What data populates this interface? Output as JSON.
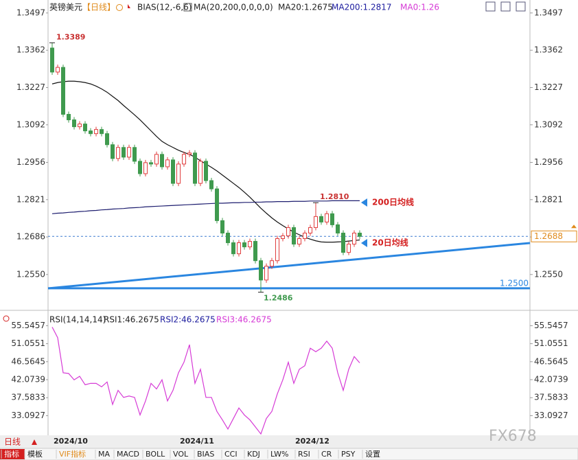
{
  "header": {
    "symbol": "英镑美元",
    "period": "【日线】",
    "indicator": "BIAS(12,-6,6)",
    "ma_params": "MA(20,200,0,0,0,0)",
    "ma20": "MA20:1.2675",
    "ma200": "MA200:1.2817",
    "ma0": "MA0:1.26"
  },
  "chart_data": [
    {
      "type": "candlestick",
      "categories": [
        "2024/10",
        null,
        null,
        null,
        null,
        null,
        null,
        null,
        null,
        null,
        null,
        null,
        null,
        null,
        null,
        null,
        null,
        null,
        null,
        null,
        null,
        null,
        null,
        "2024/11",
        null,
        null,
        null,
        null,
        null,
        null,
        null,
        null,
        null,
        null,
        null,
        null,
        null,
        null,
        null,
        null,
        null,
        null,
        null,
        null,
        "2024/12",
        null,
        null,
        null,
        null,
        null,
        null,
        null,
        null,
        null,
        null,
        null,
        null
      ],
      "open": [
        1.337,
        1.3283,
        1.33,
        1.313,
        1.311,
        1.3085,
        1.3095,
        1.307,
        1.306,
        1.3075,
        1.306,
        1.302,
        1.297,
        1.301,
        1.2975,
        1.301,
        1.296,
        1.2915,
        1.2955,
        1.295,
        1.2985,
        1.294,
        1.2965,
        1.288,
        1.295,
        1.2985,
        1.299,
        1.288,
        1.296,
        1.289,
        1.286,
        1.2745,
        1.27,
        1.2665,
        1.2625,
        1.2665,
        1.265,
        1.267,
        1.26,
        1.253,
        1.258,
        1.26,
        1.268,
        1.269,
        1.272,
        1.266,
        1.268,
        1.27,
        1.272,
        1.276,
        1.274,
        1.277,
        1.273,
        1.27,
        1.263,
        1.266,
        1.27
      ],
      "high": [
        1.3389,
        1.331,
        1.331,
        1.314,
        1.312,
        1.3105,
        1.3105,
        1.308,
        1.3085,
        1.3085,
        1.307,
        1.303,
        1.302,
        1.302,
        1.302,
        1.302,
        1.297,
        1.2965,
        1.2965,
        1.2995,
        1.2995,
        1.2975,
        1.2975,
        1.296,
        1.2995,
        1.3,
        1.3,
        1.297,
        1.297,
        1.29,
        1.287,
        1.2755,
        1.271,
        1.2675,
        1.2675,
        1.2675,
        1.268,
        1.268,
        1.261,
        1.259,
        1.261,
        1.269,
        1.27,
        1.273,
        1.273,
        1.269,
        1.271,
        1.273,
        1.281,
        1.277,
        1.278,
        1.278,
        1.274,
        1.271,
        1.267,
        1.271,
        1.271
      ],
      "low": [
        1.3273,
        1.3273,
        1.312,
        1.31,
        1.3075,
        1.3075,
        1.306,
        1.305,
        1.305,
        1.305,
        1.301,
        1.296,
        1.296,
        1.2965,
        1.2965,
        1.295,
        1.2905,
        1.2905,
        1.294,
        1.294,
        1.293,
        1.293,
        1.287,
        1.287,
        1.294,
        1.2975,
        1.287,
        1.287,
        1.288,
        1.285,
        1.2735,
        1.269,
        1.2655,
        1.2615,
        1.2615,
        1.264,
        1.264,
        1.259,
        1.2486,
        1.252,
        1.257,
        1.259,
        1.267,
        1.268,
        1.265,
        1.265,
        1.267,
        1.269,
        1.271,
        1.273,
        1.273,
        1.272,
        1.269,
        1.262,
        1.262,
        1.265,
        1.2678
      ],
      "close": [
        1.3283,
        1.33,
        1.313,
        1.311,
        1.3085,
        1.3095,
        1.307,
        1.306,
        1.3075,
        1.306,
        1.302,
        1.297,
        1.301,
        1.2975,
        1.301,
        1.296,
        1.2915,
        1.2955,
        1.295,
        1.2985,
        1.294,
        1.2965,
        1.288,
        1.295,
        1.2985,
        1.299,
        1.288,
        1.296,
        1.289,
        1.286,
        1.2745,
        1.27,
        1.2665,
        1.2625,
        1.2665,
        1.265,
        1.267,
        1.26,
        1.253,
        1.258,
        1.26,
        1.268,
        1.269,
        1.272,
        1.266,
        1.268,
        1.27,
        1.272,
        1.276,
        1.274,
        1.277,
        1.273,
        1.27,
        1.263,
        1.266,
        1.27,
        1.2688
      ],
      "high_labels": [
        "1.3389",
        null,
        null,
        null,
        null,
        null,
        null,
        null,
        null,
        null,
        null,
        null,
        null,
        null,
        null,
        null,
        null,
        null,
        null,
        null,
        null,
        null,
        null,
        null,
        null,
        null,
        null,
        null,
        null,
        null,
        null,
        null,
        null,
        null,
        null,
        null,
        null,
        null,
        null,
        null,
        null,
        null,
        null,
        null,
        null,
        null,
        null,
        null,
        "1.2810",
        null,
        null,
        null,
        null,
        null,
        null,
        null,
        null
      ],
      "low_labels": [
        null,
        null,
        null,
        null,
        null,
        null,
        null,
        null,
        null,
        null,
        null,
        null,
        null,
        null,
        null,
        null,
        null,
        null,
        null,
        null,
        null,
        null,
        null,
        null,
        null,
        null,
        null,
        null,
        null,
        null,
        null,
        null,
        null,
        null,
        null,
        null,
        null,
        null,
        "1.2486",
        null,
        null,
        null,
        null,
        null,
        null,
        null,
        null,
        null,
        null,
        null,
        null,
        null,
        null,
        null,
        null,
        null,
        null
      ],
      "up_color": "#e03c3c",
      "down_color": "#3f9a4e",
      "series": [
        {
          "name": "MA20",
          "color": "#111111",
          "values": [
            1.324,
            1.3245,
            1.3248,
            1.325,
            1.325,
            1.3248,
            1.3245,
            1.324,
            1.3232,
            1.3222,
            1.321,
            1.3195,
            1.318,
            1.3162,
            1.3145,
            1.3128,
            1.311,
            1.309,
            1.307,
            1.305,
            1.3032,
            1.302,
            1.301,
            1.3,
            1.2992,
            1.2985,
            1.2975,
            1.2962,
            1.295,
            1.2938,
            1.2925,
            1.291,
            1.2895,
            1.288,
            1.2865,
            1.2848,
            1.283,
            1.281,
            1.279,
            1.2772,
            1.2755,
            1.274,
            1.2727,
            1.2715,
            1.2703,
            1.2694,
            1.2685,
            1.2678,
            1.2672,
            1.2668,
            1.2667,
            1.2667,
            1.2668,
            1.2669,
            1.2671,
            1.2673,
            1.2675
          ]
        },
        {
          "name": "MA200",
          "color": "#1c1c6e",
          "values": [
            1.277,
            1.2772,
            1.2773,
            1.2775,
            1.2776,
            1.2778,
            1.2779,
            1.2781,
            1.2782,
            1.2784,
            1.2785,
            1.2787,
            1.2788,
            1.2789,
            1.2791,
            1.2792,
            1.2793,
            1.2795,
            1.2796,
            1.2797,
            1.2798,
            1.2799,
            1.28,
            1.2801,
            1.2802,
            1.2803,
            1.2804,
            1.2805,
            1.2806,
            1.2807,
            1.2808,
            1.2808,
            1.2809,
            1.281,
            1.281,
            1.2811,
            1.2811,
            1.2812,
            1.2812,
            1.2813,
            1.2813,
            1.2814,
            1.2814,
            1.2814,
            1.2815,
            1.2815,
            1.2815,
            1.2816,
            1.2816,
            1.2816,
            1.2816,
            1.2817,
            1.2817,
            1.2817,
            1.2817,
            1.2817,
            1.2817
          ]
        }
      ],
      "annotations": [
        "200日均线",
        "20日均线"
      ],
      "annotation_color": "#d42020",
      "trendline": {
        "start": 1.25,
        "end": 1.2664,
        "color": "#2a86e0"
      },
      "hline": {
        "value": 1.25,
        "label": "1.2500",
        "color": "#2a86e0"
      },
      "last_price": 1.2688,
      "ylim": [
        1.247,
        1.3524
      ],
      "yticks": [
        1.3497,
        1.3362,
        1.3227,
        1.3092,
        1.2956,
        1.2821,
        1.2686,
        {
          "value": 1.255,
          "label": "1.2550"
        }
      ]
    },
    {
      "type": "line",
      "title": "RSI(14,14,14)",
      "legend": [
        "RSI1:46.2675",
        "RSI2:46.2675",
        "RSI3:46.2675"
      ],
      "series": [
        {
          "name": "RSI1",
          "color": "#d63ad6",
          "values": [
            55.2,
            52.56,
            43.79,
            43.62,
            42.04,
            42.92,
            40.81,
            41.16,
            41.16,
            40.29,
            41.51,
            35.9,
            39.41,
            37.65,
            38.0,
            37.65,
            33.27,
            36.78,
            41.16,
            39.76,
            42.04,
            36.78,
            39.41,
            43.79,
            46.43,
            50.81,
            41.16,
            44.67,
            37.65,
            37.65,
            34.15,
            32.04,
            29.76,
            32.39,
            35.02,
            33.27,
            32.04,
            30.29,
            28.53,
            32.39,
            34.15,
            38.53,
            42.04,
            46.43,
            41.16,
            44.67,
            45.55,
            49.93,
            49.06,
            49.93,
            51.69,
            49.93,
            43.79,
            39.41,
            44.67,
            47.83,
            46.27
          ]
        }
      ],
      "ylim": [
        28.2,
        58.35
      ],
      "yticks": [
        55.5457,
        51.0551,
        46.5645,
        42.0739,
        37.5833,
        33.0927
      ]
    }
  ],
  "footer": {
    "period": "日线",
    "tabs": [
      "指标",
      "模板",
      "VIF指标",
      "MA",
      "MACD",
      "BOLL",
      "VOL",
      "BIAS",
      "CCI",
      "KDJ",
      "LW%",
      "RSI",
      "CR",
      "PSY",
      "设置"
    ]
  },
  "watermark": "FX678"
}
